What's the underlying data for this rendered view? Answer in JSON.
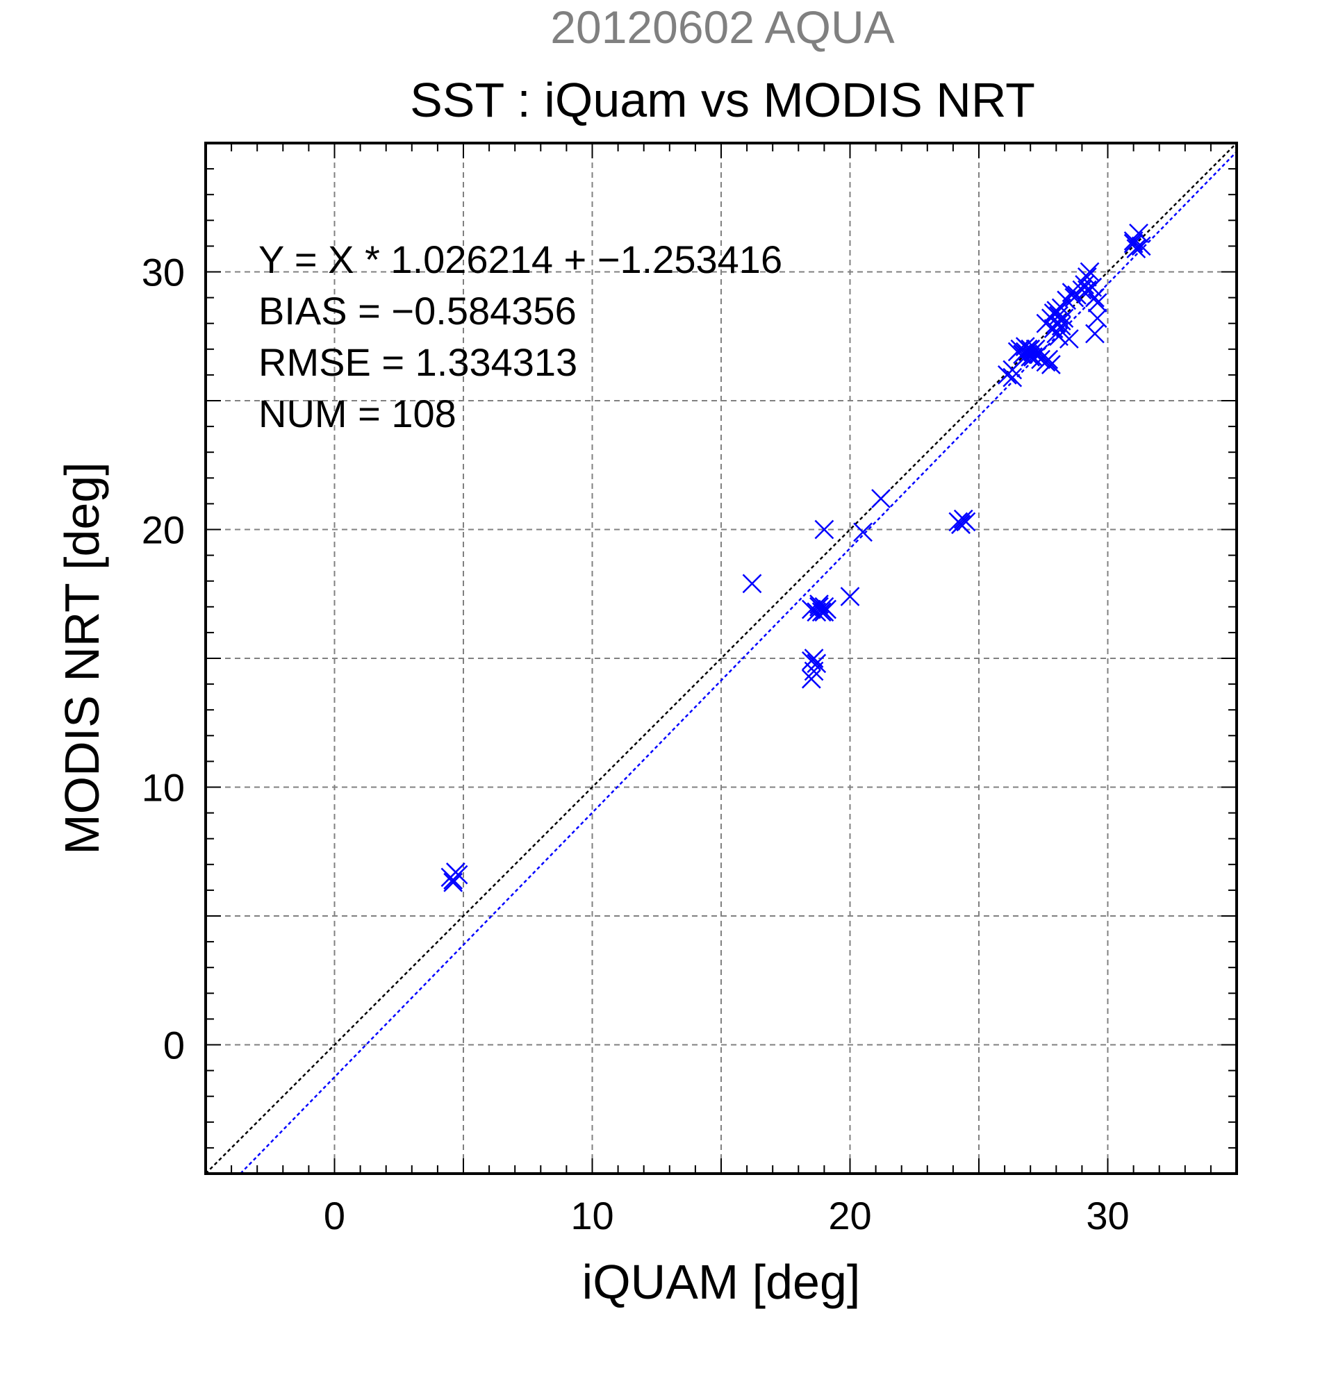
{
  "chart_data": {
    "type": "scatter",
    "supertitle": "20120602 AQUA",
    "title": "SST : iQuam vs MODIS NRT",
    "xlabel": "iQUAM [deg]",
    "ylabel": "MODIS NRT [deg]",
    "xlim": [
      -5,
      35
    ],
    "ylim": [
      -5,
      35
    ],
    "xticks": [
      0,
      10,
      20,
      30
    ],
    "yticks": [
      0,
      10,
      20,
      30
    ],
    "grid": true,
    "stats": {
      "equation": "Y = X * 1.026214 + −1.253416",
      "bias": "BIAS = −0.584356",
      "rmse": "RMSE = 1.334313",
      "num": "NUM = 108"
    },
    "colors": {
      "points": "#0000ff",
      "fit_line": "#0000ff",
      "identity_line": "#000000",
      "supertitle": "#808080",
      "grid": "#808080"
    },
    "identity_line": {
      "slope": 1.0,
      "intercept": 0.0
    },
    "fit_line": {
      "slope": 1.026214,
      "intercept": -1.253416
    },
    "series": [
      {
        "marker": "x",
        "x": [
          4.5,
          4.6,
          4.7,
          4.8,
          4.6,
          16.2,
          18.5,
          18.6,
          18.7,
          18.5,
          18.6,
          18.5,
          18.7,
          18.8,
          18.9,
          19.0,
          19.1,
          18.8,
          19.0,
          19.0,
          20.0,
          20.5,
          21.2,
          24.2,
          24.3,
          24.4,
          24.5,
          24.3,
          26.1,
          26.3,
          26.3,
          26.5,
          26.6,
          26.7,
          26.8,
          26.8,
          26.9,
          27.0,
          27.1,
          27.1,
          27.2,
          27.3,
          26.9,
          27.0,
          27.4,
          27.6,
          27.7,
          27.8,
          27.6,
          27.8,
          27.9,
          28.0,
          28.1,
          28.2,
          28.2,
          28.3,
          27.9,
          28.0,
          28.1,
          28.0,
          28.2,
          28.4,
          28.5,
          28.6,
          28.7,
          28.8,
          29.0,
          29.1,
          29.2,
          29.3,
          29.2,
          29.4,
          29.5,
          29.6,
          29.5,
          29.6,
          31.0,
          31.1,
          31.2,
          31.3,
          31.0
        ],
        "y": [
          6.5,
          6.4,
          6.7,
          6.6,
          6.3,
          17.9,
          14.2,
          14.5,
          14.8,
          14.9,
          15.0,
          16.9,
          16.8,
          17.0,
          16.8,
          17.0,
          16.9,
          17.1,
          16.8,
          20.0,
          17.4,
          19.9,
          21.2,
          20.3,
          20.2,
          20.4,
          20.3,
          20.2,
          26.0,
          26.2,
          25.9,
          26.9,
          27.0,
          26.8,
          26.9,
          27.1,
          26.8,
          27.0,
          26.7,
          26.9,
          27.0,
          26.8,
          27.0,
          26.7,
          26.6,
          26.5,
          26.6,
          26.4,
          28.0,
          28.2,
          28.4,
          28.0,
          28.3,
          28.1,
          27.9,
          28.2,
          27.8,
          27.6,
          27.5,
          28.5,
          28.6,
          28.9,
          27.4,
          29.2,
          29.0,
          29.1,
          29.3,
          29.5,
          29.8,
          30.0,
          29.3,
          29.4,
          29.0,
          28.8,
          27.6,
          28.2,
          31.2,
          30.9,
          31.5,
          31.0,
          31.1
        ]
      }
    ]
  }
}
